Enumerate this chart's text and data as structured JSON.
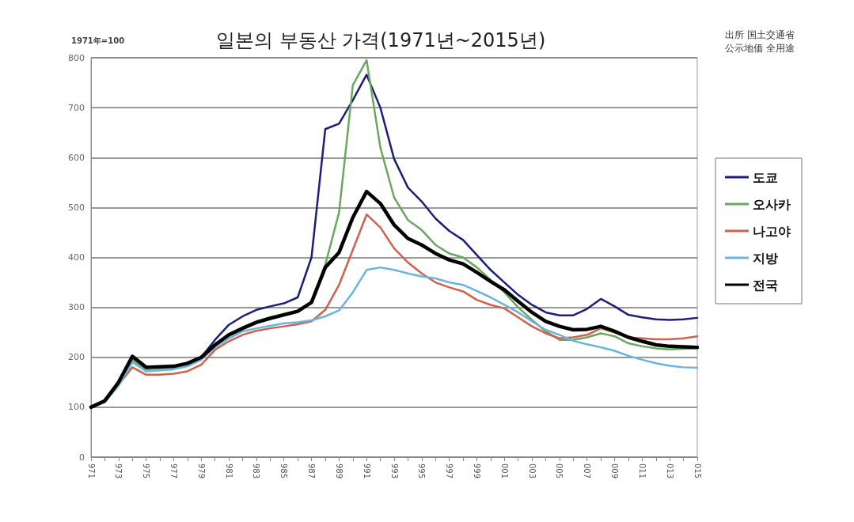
{
  "chart_data": {
    "type": "line",
    "title": "일본의 부동산 가격(1971년~2015년)",
    "annotations": [
      "1971年=100",
      "出所 国土交通省",
      "公示地価 全用途"
    ],
    "categories": [
      "971",
      null,
      "973",
      null,
      "975",
      null,
      "977",
      null,
      "979",
      null,
      "981",
      null,
      "983",
      null,
      "985",
      null,
      "987",
      null,
      "989",
      null,
      "991",
      null,
      "993",
      null,
      "995",
      null,
      "997",
      null,
      "999",
      null,
      "001",
      null,
      "003",
      null,
      "005",
      null,
      "007",
      null,
      "009",
      null,
      "011",
      null,
      "013",
      null,
      "015"
    ],
    "series": [
      {
        "name": "도쿄",
        "color": "#1b1f7a",
        "values": [
          100,
          112,
          150,
          200,
          178,
          180,
          182,
          188,
          200,
          235,
          265,
          282,
          295,
          302,
          308,
          320,
          400,
          657,
          668,
          715,
          766,
          700,
          597,
          540,
          512,
          478,
          453,
          435,
          405,
          375,
          350,
          325,
          305,
          290,
          284,
          284,
          297,
          317,
          302,
          285,
          280,
          276,
          275,
          276,
          279
        ]
      },
      {
        "name": "오사카",
        "color": "#6aa85f",
        "values": [
          100,
          112,
          148,
          195,
          176,
          178,
          179,
          185,
          197,
          225,
          245,
          260,
          272,
          280,
          287,
          293,
          310,
          385,
          490,
          745,
          795,
          620,
          520,
          475,
          455,
          425,
          408,
          400,
          380,
          355,
          330,
          300,
          275,
          252,
          235,
          235,
          240,
          248,
          242,
          228,
          222,
          218,
          216,
          217,
          218
        ]
      },
      {
        "name": "나고야",
        "color": "#d2604e",
        "values": [
          100,
          110,
          145,
          180,
          165,
          165,
          167,
          172,
          185,
          215,
          232,
          245,
          253,
          258,
          262,
          266,
          272,
          295,
          345,
          415,
          486,
          460,
          418,
          390,
          368,
          350,
          340,
          332,
          315,
          305,
          298,
          280,
          262,
          248,
          238,
          240,
          245,
          258,
          250,
          240,
          238,
          236,
          236,
          238,
          242
        ]
      },
      {
        "name": "지방",
        "color": "#6cb4e0",
        "values": [
          100,
          110,
          143,
          190,
          172,
          174,
          176,
          182,
          195,
          220,
          238,
          252,
          258,
          263,
          268,
          270,
          274,
          282,
          294,
          330,
          375,
          380,
          375,
          368,
          362,
          358,
          350,
          345,
          333,
          320,
          305,
          290,
          272,
          255,
          245,
          233,
          226,
          220,
          213,
          203,
          195,
          188,
          183,
          180,
          179
        ]
      },
      {
        "name": "전국",
        "color": "#000000",
        "values": [
          100,
          113,
          150,
          202,
          180,
          181,
          182,
          188,
          200,
          225,
          245,
          258,
          270,
          278,
          285,
          292,
          310,
          380,
          410,
          480,
          532,
          508,
          465,
          438,
          425,
          408,
          395,
          387,
          370,
          352,
          335,
          312,
          290,
          272,
          262,
          255,
          256,
          262,
          252,
          240,
          232,
          225,
          222,
          221,
          220
        ]
      }
    ],
    "ylim": [
      0,
      800
    ],
    "yticks": [
      0,
      100,
      200,
      300,
      400,
      500,
      600,
      700,
      800
    ],
    "grid": "y",
    "legend": "right",
    "marker": "none",
    "line_style": "solid"
  }
}
